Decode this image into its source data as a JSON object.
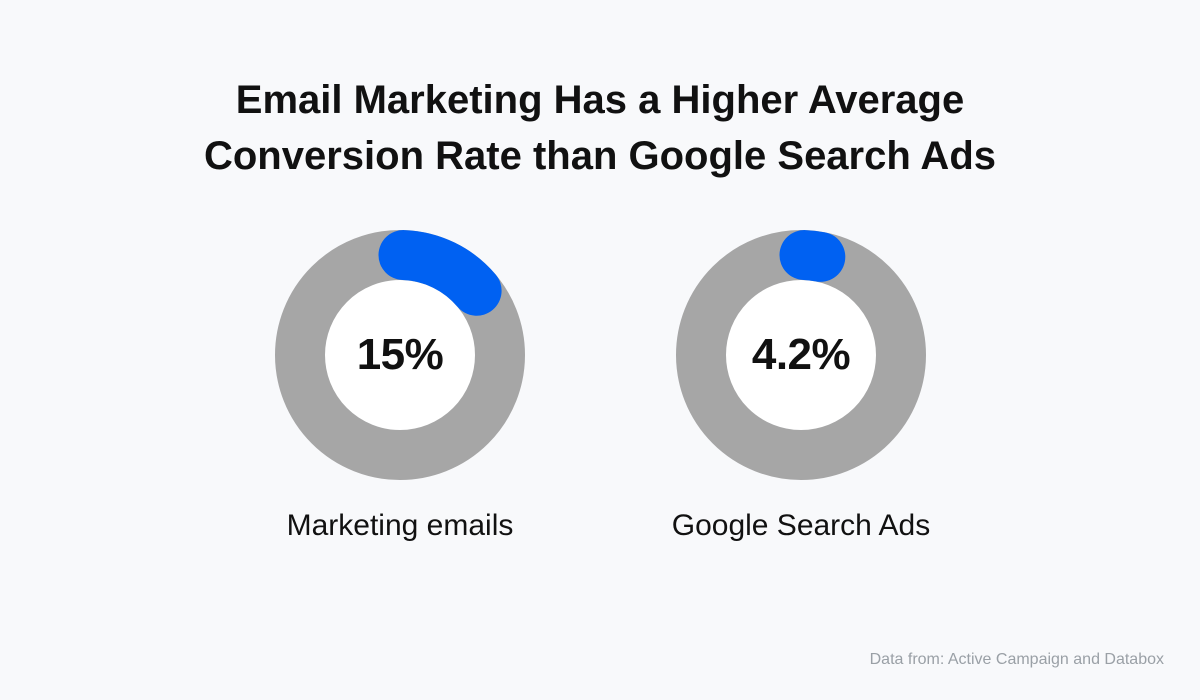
{
  "chart_data": {
    "type": "pie",
    "title_lines": [
      "Email Marketing Has a Higher Average",
      "Conversion Rate than Google Search Ads"
    ],
    "series": [
      {
        "name": "Marketing emails",
        "value": 15,
        "display": "15%"
      },
      {
        "name": "Google Search Ads",
        "value": 4.2,
        "display": "4.2%"
      }
    ],
    "unit": "%",
    "source": "Data from: Active Campaign and Databox"
  },
  "colors": {
    "accent": "#0061f2",
    "track": "#a6a6a6",
    "center": "#ffffff",
    "background": "#f8f9fb",
    "text": "#111111",
    "muted": "#9aa0a6"
  }
}
